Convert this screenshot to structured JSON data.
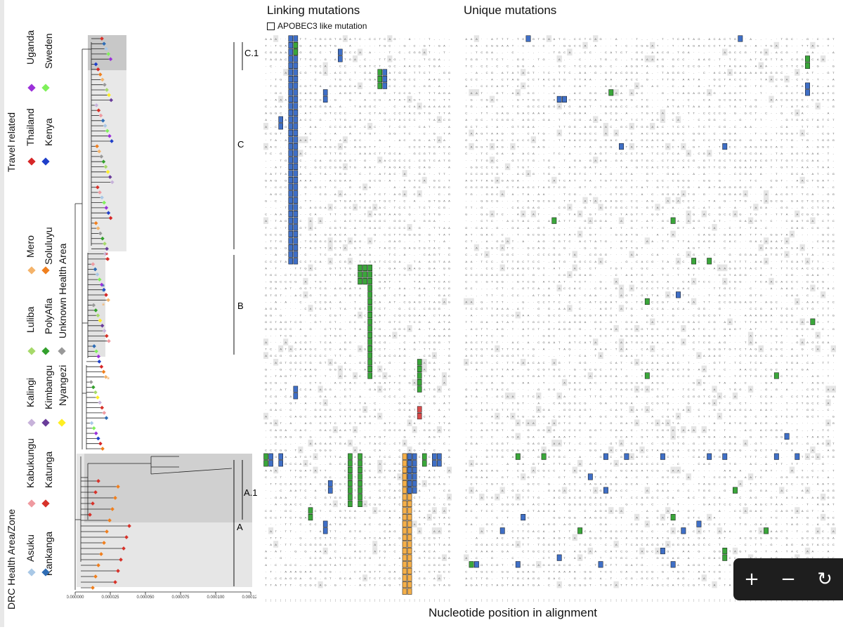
{
  "titles": {
    "linking": "Linking mutations",
    "unique": "Unique mutations",
    "apobec": "APOBEC3 like mutation",
    "xaxis": "Nucleotide position in alignment"
  },
  "legend": {
    "group_drc": "DRC Health Area/Zone",
    "group_travel": "Travel related",
    "unknown": "Unknown Health Area",
    "items": [
      {
        "name": "Asuku",
        "color": "#a9c8e6"
      },
      {
        "name": "Kankanga",
        "color": "#2f6db5"
      },
      {
        "name": "Kabukungu",
        "color": "#ef9aa0"
      },
      {
        "name": "Katunga",
        "color": "#d7322a"
      },
      {
        "name": "Kalingi",
        "color": "#c7b2da"
      },
      {
        "name": "Kimbangu",
        "color": "#6a3d9a"
      },
      {
        "name": "Nyangezi",
        "color": "#ffee22"
      },
      {
        "name": "Luliba",
        "color": "#a6d96a"
      },
      {
        "name": "PolyAfia",
        "color": "#33a02c"
      },
      {
        "name": "Unknown Health Area",
        "color": "#999999"
      },
      {
        "name": "Mero",
        "color": "#f4b36a"
      },
      {
        "name": "Soluluyu",
        "color": "#f07f1e"
      },
      {
        "name": "Thailand",
        "color": "#d62728"
      },
      {
        "name": "Kenya",
        "color": "#1f3fc9"
      },
      {
        "name": "Uganda",
        "color": "#9b30d9"
      },
      {
        "name": "Sweden",
        "color": "#7ff05a"
      }
    ]
  },
  "clades": [
    "C.1",
    "C",
    "B",
    "A.1",
    "A"
  ],
  "tree_axis": {
    "ticks": [
      "0.000000",
      "0.000025",
      "0.000050",
      "0.000075",
      "0.000100",
      "0.000125"
    ]
  },
  "colors": {
    "cell_blue": "#3f6fc6",
    "cell_green": "#3aa63a",
    "cell_orange": "#f5b04a",
    "cell_red": "#d94b4b",
    "shade": "#d9d9d9",
    "shade_dark": "#c8c8c8"
  },
  "controls": {
    "zoom_in": "+",
    "zoom_out": "−",
    "refresh": "↻"
  }
}
